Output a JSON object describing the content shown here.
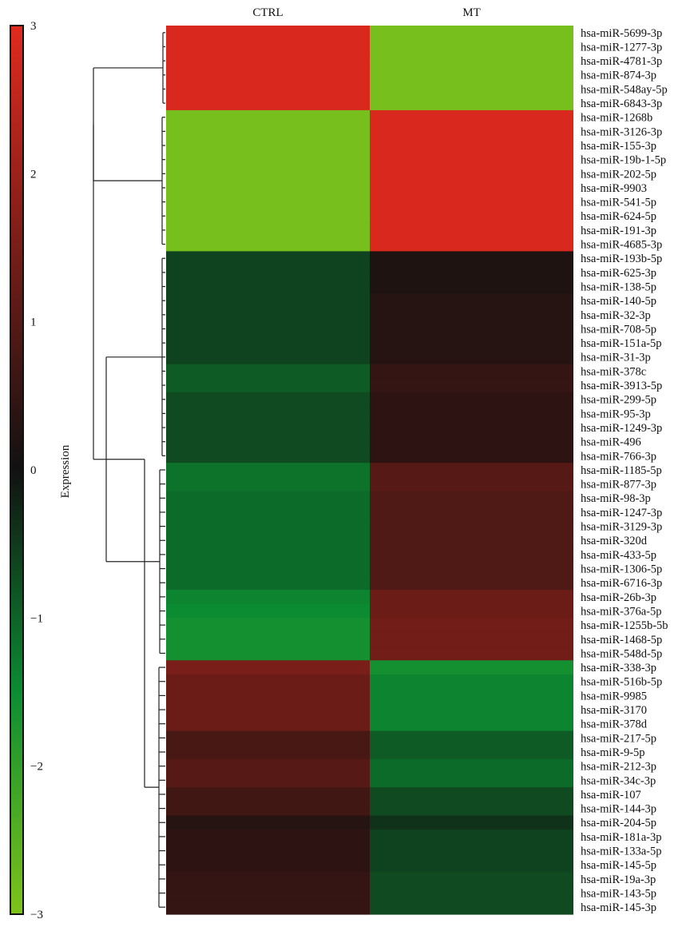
{
  "chart_data": {
    "type": "heatmap",
    "columns": [
      "CTRL",
      "MT"
    ],
    "rows": [
      "hsa-miR-5699-3p",
      "hsa-miR-1277-3p",
      "hsa-miR-4781-3p",
      "hsa-miR-874-3p",
      "hsa-miR-548ay-5p",
      "hsa-miR-6843-3p",
      "hsa-miR-1268b",
      "hsa-miR-3126-3p",
      "hsa-miR-155-3p",
      "hsa-miR-19b-1-5p",
      "hsa-miR-202-5p",
      "hsa-miR-9903",
      "hsa-miR-541-5p",
      "hsa-miR-624-5p",
      "hsa-miR-191-3p",
      "hsa-miR-4685-3p",
      "hsa-miR-193b-5p",
      "hsa-miR-625-3p",
      "hsa-miR-138-5p",
      "hsa-miR-140-5p",
      "hsa-miR-32-3p",
      "hsa-miR-708-5p",
      "hsa-miR-151a-5p",
      "hsa-miR-31-3p",
      "hsa-miR-378c",
      "hsa-miR-3913-5p",
      "hsa-miR-299-5p",
      "hsa-miR-95-3p",
      "hsa-miR-1249-3p",
      "hsa-miR-496",
      "hsa-miR-766-3p",
      "hsa-miR-1185-5p",
      "hsa-miR-877-3p",
      "hsa-miR-98-3p",
      "hsa-miR-1247-3p",
      "hsa-miR-3129-3p",
      "hsa-miR-320d",
      "hsa-miR-433-5p",
      "hsa-miR-1306-5p",
      "hsa-miR-6716-3p",
      "hsa-miR-26b-3p",
      "hsa-miR-376a-5p",
      "hsa-miR-1255b-5b",
      "hsa-miR-1468-5p",
      "hsa-miR-548d-5p",
      "hsa-miR-338-3p",
      "hsa-miR-516b-5p",
      "hsa-miR-9985",
      "hsa-miR-3170",
      "hsa-miR-378d",
      "hsa-miR-217-5p",
      "hsa-miR-9-5p",
      "hsa-miR-212-3p",
      "hsa-miR-34c-3p",
      "hsa-miR-107",
      "hsa-miR-144-3p",
      "hsa-miR-204-5p",
      "hsa-miR-181a-3p",
      "hsa-miR-133a-5p",
      "hsa-miR-145-5p",
      "hsa-miR-19a-3p",
      "hsa-miR-143-5p",
      "hsa-miR-145-3p"
    ],
    "values": [
      [
        2.9,
        -2.9
      ],
      [
        2.9,
        -2.9
      ],
      [
        2.9,
        -2.9
      ],
      [
        2.9,
        -2.9
      ],
      [
        2.9,
        -2.9
      ],
      [
        2.9,
        -2.9
      ],
      [
        -2.9,
        2.9
      ],
      [
        -2.9,
        2.9
      ],
      [
        -2.9,
        2.9
      ],
      [
        -2.9,
        2.9
      ],
      [
        -2.9,
        2.9
      ],
      [
        -2.9,
        2.9
      ],
      [
        -2.9,
        2.9
      ],
      [
        -2.9,
        2.9
      ],
      [
        -2.9,
        2.9
      ],
      [
        -2.9,
        2.9
      ],
      [
        -0.6,
        0.2
      ],
      [
        -0.6,
        0.2
      ],
      [
        -0.6,
        0.2
      ],
      [
        -0.6,
        0.3
      ],
      [
        -0.6,
        0.3
      ],
      [
        -0.6,
        0.3
      ],
      [
        -0.6,
        0.3
      ],
      [
        -0.6,
        0.3
      ],
      [
        -0.9,
        0.5
      ],
      [
        -0.9,
        0.5
      ],
      [
        -0.7,
        0.4
      ],
      [
        -0.7,
        0.4
      ],
      [
        -0.7,
        0.4
      ],
      [
        -0.7,
        0.4
      ],
      [
        -0.7,
        0.4
      ],
      [
        -1.2,
        1.0
      ],
      [
        -1.2,
        1.0
      ],
      [
        -1.1,
        0.9
      ],
      [
        -1.1,
        0.9
      ],
      [
        -1.1,
        0.9
      ],
      [
        -1.1,
        0.9
      ],
      [
        -1.1,
        0.9
      ],
      [
        -1.1,
        0.9
      ],
      [
        -1.1,
        0.9
      ],
      [
        -1.4,
        1.3
      ],
      [
        -1.5,
        1.3
      ],
      [
        -1.6,
        1.4
      ],
      [
        -1.6,
        1.4
      ],
      [
        -1.6,
        1.4
      ],
      [
        1.5,
        -1.6
      ],
      [
        1.3,
        -1.4
      ],
      [
        1.3,
        -1.4
      ],
      [
        1.3,
        -1.4
      ],
      [
        1.3,
        -1.4
      ],
      [
        0.8,
        -0.9
      ],
      [
        0.8,
        -0.9
      ],
      [
        1.0,
        -1.1
      ],
      [
        1.0,
        -1.1
      ],
      [
        0.7,
        -0.7
      ],
      [
        0.7,
        -0.7
      ],
      [
        0.3,
        -0.4
      ],
      [
        0.4,
        -0.6
      ],
      [
        0.4,
        -0.6
      ],
      [
        0.4,
        -0.6
      ],
      [
        0.5,
        -0.7
      ],
      [
        0.5,
        -0.7
      ],
      [
        0.5,
        -0.7
      ]
    ],
    "colorbar": {
      "label": "Expression",
      "range": [
        -3,
        3
      ],
      "ticks": [
        "3",
        "2",
        "1",
        "0",
        "−1",
        "−2",
        "−3"
      ],
      "colors": {
        "high": "#e02a1e",
        "mid": "#111111",
        "low": "#7ec31a"
      }
    },
    "dendrogram": "rows, left side"
  }
}
